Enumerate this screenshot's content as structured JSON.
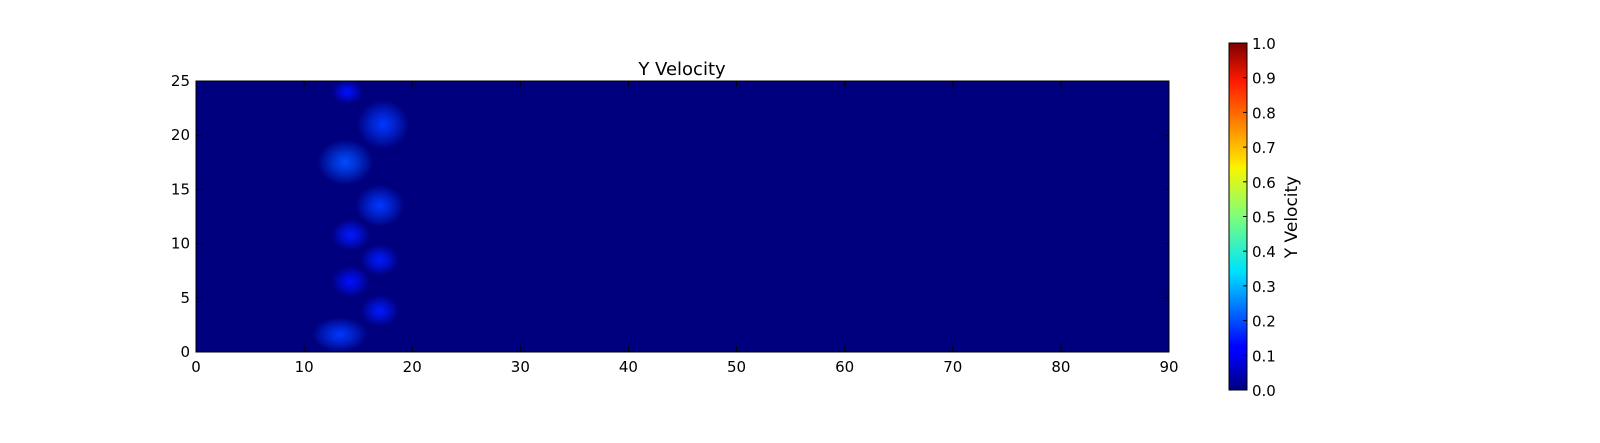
{
  "chart_data": {
    "type": "heatmap",
    "title": "Y Velocity",
    "xlabel": "",
    "ylabel": "",
    "xlim": [
      0,
      90
    ],
    "ylim": [
      0,
      25
    ],
    "x_ticks": [
      0,
      10,
      20,
      30,
      40,
      50,
      60,
      70,
      80,
      90
    ],
    "y_ticks": [
      0,
      5,
      10,
      15,
      20,
      25
    ],
    "grid": false,
    "colormap": "jet",
    "background_value": 0.0,
    "field_blobs": [
      {
        "x": 14.0,
        "y": 24.0,
        "sx": 0.9,
        "sy": 0.7,
        "value": 0.14
      },
      {
        "x": 17.3,
        "y": 21.0,
        "sx": 1.5,
        "sy": 1.4,
        "value": 0.18
      },
      {
        "x": 13.8,
        "y": 17.5,
        "sx": 1.6,
        "sy": 1.3,
        "value": 0.2
      },
      {
        "x": 17.0,
        "y": 13.5,
        "sx": 1.4,
        "sy": 1.2,
        "value": 0.18
      },
      {
        "x": 14.3,
        "y": 10.8,
        "sx": 1.1,
        "sy": 0.9,
        "value": 0.15
      },
      {
        "x": 17.0,
        "y": 8.5,
        "sx": 1.1,
        "sy": 0.9,
        "value": 0.15
      },
      {
        "x": 14.3,
        "y": 6.5,
        "sx": 1.1,
        "sy": 0.9,
        "value": 0.14
      },
      {
        "x": 17.0,
        "y": 3.8,
        "sx": 1.1,
        "sy": 0.9,
        "value": 0.15
      },
      {
        "x": 13.3,
        "y": 1.6,
        "sx": 1.6,
        "sy": 1.0,
        "value": 0.18
      }
    ],
    "colorbar": {
      "label": "Y Velocity",
      "min": 0.0,
      "max": 1.0,
      "ticks": [
        "0.0",
        "0.1",
        "0.2",
        "0.3",
        "0.4",
        "0.5",
        "0.6",
        "0.7",
        "0.8",
        "0.9",
        "1.0"
      ]
    }
  }
}
